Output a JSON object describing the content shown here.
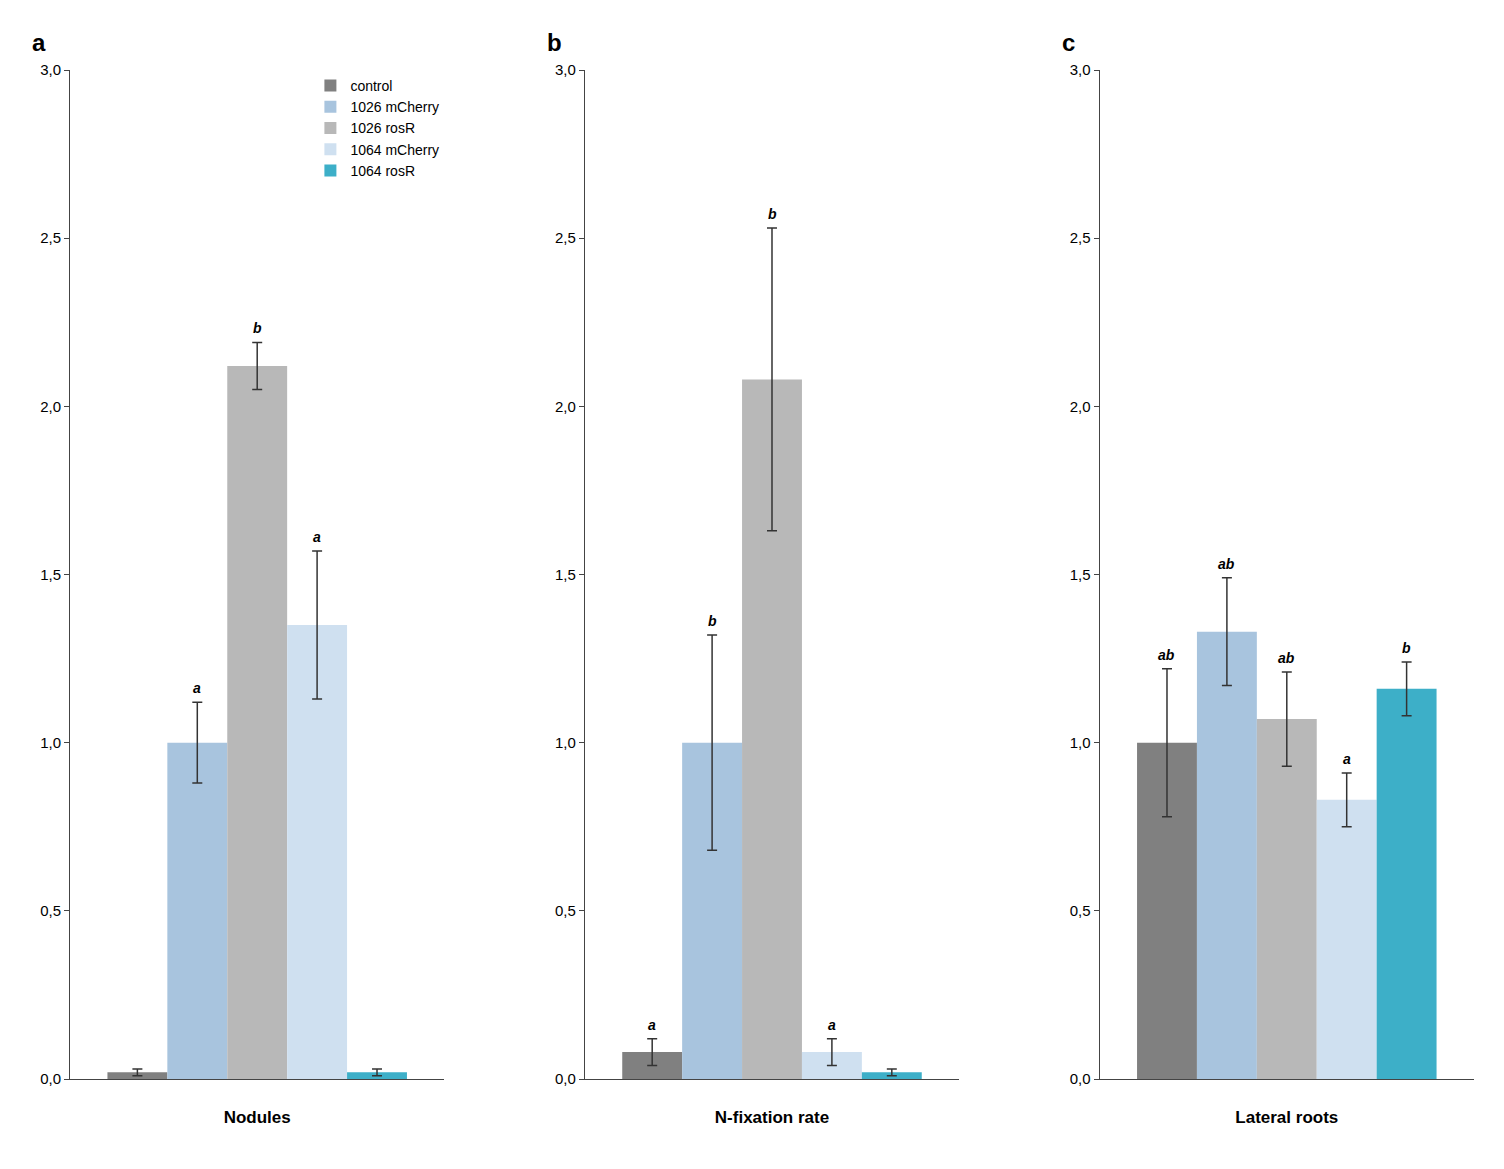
{
  "chart_data": [
    {
      "type": "bar",
      "title": "a",
      "xlabel": "Nodules",
      "categories": [
        null
      ],
      "series": [
        {
          "name": "control",
          "color": "#808080",
          "values": [
            0.02
          ],
          "errors": [
            0.01
          ]
        },
        {
          "name": "1026 mCherry",
          "color": "#a8c4de",
          "values": [
            1.0
          ],
          "errors": [
            0.12
          ],
          "annotations": [
            "a"
          ]
        },
        {
          "name": "1026 rosR",
          "color": "#b8b8b8",
          "values": [
            2.12
          ],
          "errors": [
            0.07
          ],
          "annotations": [
            "b"
          ]
        },
        {
          "name": "1064 mCherry",
          "color": "#cfe0f0",
          "values": [
            1.35
          ],
          "errors": [
            0.22
          ],
          "annotations": [
            "a"
          ]
        },
        {
          "name": "1064 rosR",
          "color": "#3dafc8",
          "values": [
            0.02
          ],
          "errors": [
            0.01
          ]
        }
      ],
      "ylim": [
        0,
        3.0
      ],
      "yticks": [
        {
          "value": 0.0,
          "label": "0,0"
        },
        {
          "value": 0.5,
          "label": "0,5"
        },
        {
          "value": 1.0,
          "label": "1,0"
        },
        {
          "value": 1.5,
          "label": "1,5"
        },
        {
          "value": 2.0,
          "label": "2,0"
        },
        {
          "value": 2.5,
          "label": "2,5"
        },
        {
          "value": 3.0,
          "label": "3,0"
        }
      ],
      "grid": false,
      "tick_labels": "y",
      "legend": "upper right"
    },
    {
      "type": "bar",
      "title": "b",
      "xlabel": "N-fixation rate",
      "categories": [
        null
      ],
      "series": [
        {
          "name": "control",
          "color": "#808080",
          "values": [
            0.08
          ],
          "errors": [
            0.04
          ],
          "annotations": [
            "a"
          ]
        },
        {
          "name": "1026 mCherry",
          "color": "#a8c4de",
          "values": [
            1.0
          ],
          "errors": [
            0.32
          ],
          "annotations": [
            "b"
          ]
        },
        {
          "name": "1026 rosR",
          "color": "#b8b8b8",
          "values": [
            2.08
          ],
          "errors": [
            0.45
          ],
          "annotations": [
            "b"
          ]
        },
        {
          "name": "1064 mCherry",
          "color": "#cfe0f0",
          "values": [
            0.08
          ],
          "errors": [
            0.04
          ],
          "annotations": [
            "a"
          ]
        },
        {
          "name": "1064 rosR",
          "color": "#3dafc8",
          "values": [
            0.02
          ],
          "errors": [
            0.01
          ]
        }
      ],
      "ylim": [
        0,
        3.0
      ],
      "yticks": [
        {
          "value": 0.0,
          "label": "0,0"
        },
        {
          "value": 0.5,
          "label": "0,5"
        },
        {
          "value": 1.0,
          "label": "1,0"
        },
        {
          "value": 1.5,
          "label": "1,5"
        },
        {
          "value": 2.0,
          "label": "2,0"
        },
        {
          "value": 2.5,
          "label": "2,5"
        },
        {
          "value": 3.0,
          "label": "3,0"
        }
      ],
      "grid": false,
      "tick_labels": "y"
    },
    {
      "type": "bar",
      "title": "c",
      "xlabel": "Lateral roots",
      "categories": [
        null
      ],
      "series": [
        {
          "name": "control",
          "color": "#808080",
          "values": [
            1.0
          ],
          "errors": [
            0.22
          ],
          "annotations": [
            "ab"
          ]
        },
        {
          "name": "1026 mCherry",
          "color": "#a8c4de",
          "values": [
            1.33
          ],
          "errors": [
            0.16
          ],
          "annotations": [
            "ab"
          ]
        },
        {
          "name": "1026 rosR",
          "color": "#b8b8b8",
          "values": [
            1.07
          ],
          "errors": [
            0.14
          ],
          "annotations": [
            "ab"
          ]
        },
        {
          "name": "1064 mCherry",
          "color": "#cfe0f0",
          "values": [
            0.83
          ],
          "errors": [
            0.08
          ],
          "annotations": [
            "a"
          ]
        },
        {
          "name": "1064 rosR",
          "color": "#3dafc8",
          "values": [
            1.16
          ],
          "errors": [
            0.08
          ],
          "annotations": [
            "b"
          ]
        }
      ],
      "ylim": [
        0,
        3.0
      ],
      "yticks": [
        {
          "value": 0.0,
          "label": "0,0"
        },
        {
          "value": 0.5,
          "label": "0,5"
        },
        {
          "value": 1.0,
          "label": "1,0"
        },
        {
          "value": 1.5,
          "label": "1,5"
        },
        {
          "value": 2.0,
          "label": "2,0"
        },
        {
          "value": 2.5,
          "label": "2,5"
        },
        {
          "value": 3.0,
          "label": "3,0"
        }
      ],
      "grid": false,
      "tick_labels": "y"
    }
  ]
}
